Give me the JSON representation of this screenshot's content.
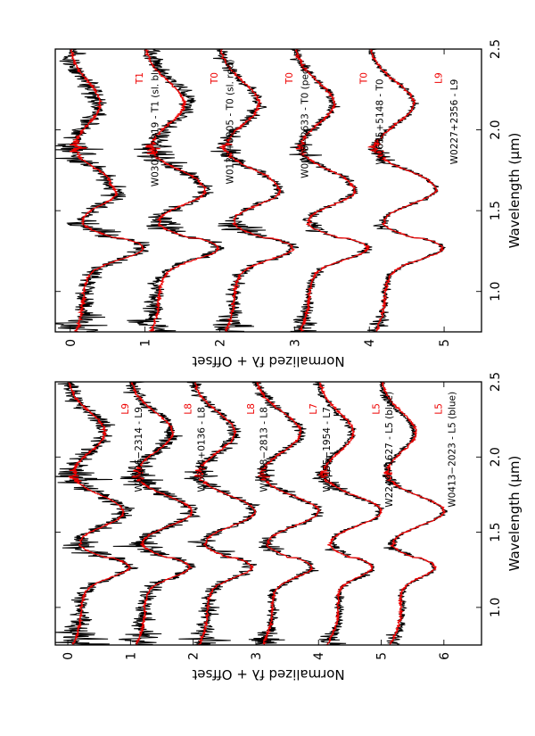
{
  "chart_data": [
    {
      "type": "line",
      "panel": "left",
      "xlabel": "Wavelength (μm)",
      "ylabel": "Normalized fλ + Offset",
      "xlim": [
        0.75,
        2.5
      ],
      "ylim": [
        -0.2,
        6.6
      ],
      "xticks": [
        "1.0",
        "1.5",
        "2.0",
        "2.5"
      ],
      "yticks": [
        "0",
        "1",
        "2",
        "3",
        "4",
        "5",
        "6"
      ],
      "series": [
        {
          "name": "W0413−2023 - L5 (blue)",
          "standard": "L5",
          "offset": 5.0,
          "type_key": "blueL"
        },
        {
          "name": "W2249−1627 - L5 (blue)",
          "standard": "L5",
          "offset": 4.0,
          "type_key": "blueL"
        },
        {
          "name": "W2155−1954 - L7",
          "standard": "L7",
          "offset": 3.0,
          "type_key": "L7"
        },
        {
          "name": "W0008−2813 - L8",
          "standard": "L8",
          "offset": 2.0,
          "type_key": "L8"
        },
        {
          "name": "W0344+0136 - L8",
          "standard": "L8",
          "offset": 1.0,
          "type_key": "L8"
        },
        {
          "name": "W0106−2314 - L9",
          "standard": "L9",
          "offset": 0.0,
          "type_key": "L9"
        }
      ]
    },
    {
      "type": "line",
      "panel": "right",
      "xlabel": "Wavelength (μm)",
      "ylabel": "Normalized fλ + Offset",
      "xlim": [
        0.75,
        2.5
      ],
      "ylim": [
        -0.2,
        5.5
      ],
      "xticks": [
        "1.0",
        "1.5",
        "2.0",
        "2.5"
      ],
      "yticks": [
        "0",
        "1",
        "2",
        "3",
        "4",
        "5"
      ],
      "series": [
        {
          "name": "W0227+2356 - L9",
          "standard": "L9",
          "offset": 4.0,
          "type_key": "L9"
        },
        {
          "name": "W0635+5148 - T0",
          "standard": "T0",
          "offset": 3.0,
          "type_key": "T0"
        },
        {
          "name": "W0005−2633 - T0 (pec)",
          "standard": "T0",
          "offset": 2.0,
          "type_key": "T0"
        },
        {
          "name": "W0135+0205 - T0 (sl. red)",
          "standard": "T0",
          "offset": 1.0,
          "type_key": "T0"
        },
        {
          "name": "W0301−2319 - T1 (sl. blue)",
          "standard": "T1",
          "offset": 0.0,
          "type_key": "T1"
        }
      ]
    }
  ],
  "colors": {
    "object": "#000000",
    "standard": "#ee0000"
  }
}
